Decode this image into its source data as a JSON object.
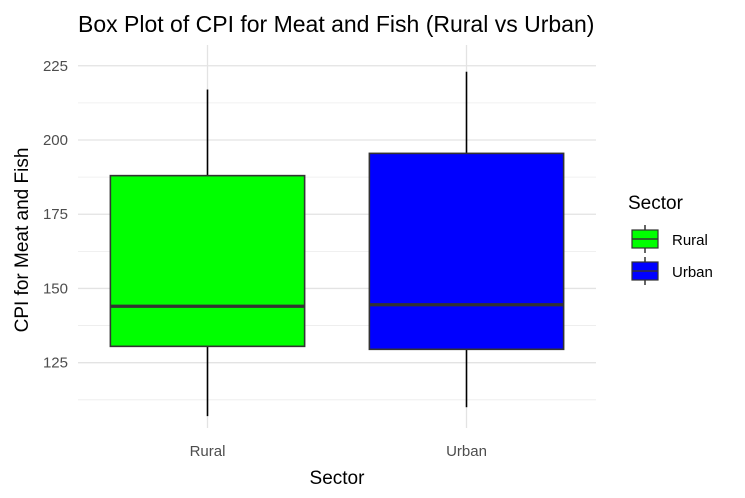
{
  "chart_data": {
    "type": "box",
    "title": "Box Plot of CPI for Meat and Fish (Rural vs Urban)",
    "xlabel": "Sector",
    "ylabel": "CPI for Meat and Fish",
    "categories": [
      "Rural",
      "Urban"
    ],
    "ylim": [
      103,
      232
    ],
    "y_ticks": [
      125,
      150,
      175,
      200,
      225
    ],
    "grid": true,
    "legend": {
      "title": "Sector",
      "position": "right",
      "entries": [
        "Rural",
        "Urban"
      ]
    },
    "series": [
      {
        "category": "Rural",
        "min": 107,
        "q1": 130.5,
        "median": 144,
        "q3": 188,
        "max": 217,
        "color": "#00ff00"
      },
      {
        "category": "Urban",
        "min": 110,
        "q1": 129.5,
        "median": 144.5,
        "q3": 195.5,
        "max": 223,
        "color": "#0000ff"
      }
    ]
  }
}
